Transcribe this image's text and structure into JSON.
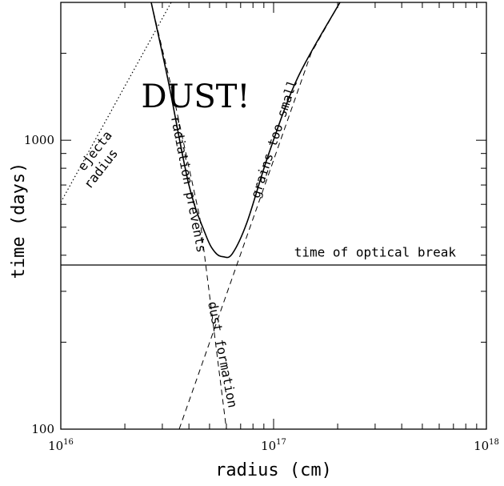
{
  "chart_data": {
    "type": "line",
    "xlabel": "radius (cm)",
    "ylabel": "time (days)",
    "xscale": "log",
    "yscale": "log",
    "xlim": [
      1e+16,
      1e+18
    ],
    "ylim": [
      100,
      3000
    ],
    "x_ticks": [
      {
        "value": 1e+16,
        "base": "10",
        "exp": "16"
      },
      {
        "value": 1e+17,
        "base": "10",
        "exp": "17"
      },
      {
        "value": 1e+18,
        "base": "10",
        "exp": "18"
      }
    ],
    "y_ticks": [
      {
        "value": 100,
        "label": "100"
      },
      {
        "value": 1000,
        "label": "1000"
      }
    ],
    "series": [
      {
        "style": "solid",
        "points": [
          [
            2.66e+16,
            3000
          ],
          [
            3.2e+16,
            1600
          ],
          [
            4e+16,
            700
          ],
          [
            4.8e+16,
            470
          ],
          [
            5.3e+16,
            410
          ],
          [
            5.8e+16,
            395
          ],
          [
            6.4e+16,
            405
          ],
          [
            7.5e+16,
            520
          ],
          [
            9.5e+16,
            900
          ],
          [
            1.3e+17,
            1650
          ],
          [
            2.05e+17,
            3000
          ]
        ]
      },
      {
        "style": "dashed",
        "points": [
          [
            2.66e+16,
            3000
          ],
          [
            3.4e+16,
            1400
          ],
          [
            4.5e+16,
            540
          ],
          [
            6e+16,
            100
          ]
        ]
      },
      {
        "style": "dashed",
        "points": [
          [
            3.6e+16,
            100
          ],
          [
            1.5e+17,
            2000
          ],
          [
            2.05e+17,
            3000
          ]
        ]
      },
      {
        "style": "dotted",
        "points": [
          [
            1e+16,
            610
          ],
          [
            3.3e+16,
            3000
          ]
        ]
      },
      {
        "style": "solid",
        "points": [
          [
            1e+16,
            370
          ],
          [
            1e+18,
            370
          ]
        ]
      }
    ],
    "annotations": [
      {
        "text": "DUST!",
        "at": [
          4.3e+16,
          1300
        ],
        "rotate": 0,
        "size": "large"
      },
      {
        "text": "time of optical break",
        "at": [
          3e+17,
          395
        ],
        "rotate": 0
      },
      {
        "text": "ejecta",
        "at": [
          1.5e+16,
          900
        ],
        "rotate": -52
      },
      {
        "text": "radius",
        "at": [
          1.6e+16,
          780
        ],
        "rotate": -52
      },
      {
        "text": "radiation prevents",
        "at": [
          3.8e+16,
          700
        ],
        "rotate": 79
      },
      {
        "text": "dust formation",
        "at": [
          5.5e+16,
          180
        ],
        "rotate": 79
      },
      {
        "text": "grains too small",
        "at": [
          1.05e+17,
          1000
        ],
        "rotate": -72
      }
    ]
  }
}
